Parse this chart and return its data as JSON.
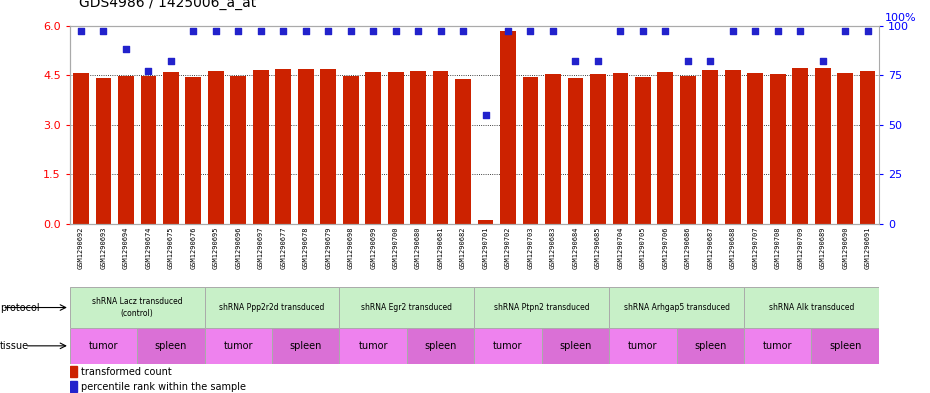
{
  "title": "GDS4986 / 1425006_a_at",
  "sample_ids": [
    "GSM1290692",
    "GSM1290693",
    "GSM1290694",
    "GSM1290674",
    "GSM1290675",
    "GSM1290676",
    "GSM1290695",
    "GSM1290696",
    "GSM1290697",
    "GSM1290677",
    "GSM1290678",
    "GSM1290679",
    "GSM1290698",
    "GSM1290699",
    "GSM1290700",
    "GSM1290680",
    "GSM1290681",
    "GSM1290682",
    "GSM1290701",
    "GSM1290702",
    "GSM1290703",
    "GSM1290683",
    "GSM1290684",
    "GSM1290685",
    "GSM1290704",
    "GSM1290705",
    "GSM1290706",
    "GSM1290686",
    "GSM1290687",
    "GSM1290688",
    "GSM1290707",
    "GSM1290708",
    "GSM1290709",
    "GSM1290689",
    "GSM1290690",
    "GSM1290691"
  ],
  "bar_values": [
    4.57,
    4.42,
    4.46,
    4.46,
    4.59,
    4.43,
    4.62,
    4.47,
    4.67,
    4.68,
    4.68,
    4.68,
    4.46,
    4.59,
    4.59,
    4.63,
    4.64,
    4.38,
    0.12,
    5.82,
    4.43,
    4.55,
    4.41,
    4.54,
    4.58,
    4.43,
    4.59,
    4.48,
    4.67,
    4.66,
    4.57,
    4.52,
    4.73,
    4.73,
    4.57,
    4.62
  ],
  "percentile_values": [
    97,
    97,
    88,
    77,
    82,
    97,
    97,
    97,
    97,
    97,
    97,
    97,
    97,
    97,
    97,
    97,
    97,
    97,
    55,
    97,
    97,
    97,
    82,
    82,
    97,
    97,
    97,
    82,
    82,
    97,
    97,
    97,
    97,
    82,
    97,
    97
  ],
  "protocols": [
    {
      "label": "shRNA Lacz transduced\n(control)",
      "start": 0,
      "end": 6,
      "color": "#c8f0c8"
    },
    {
      "label": "shRNA Ppp2r2d transduced",
      "start": 6,
      "end": 12,
      "color": "#c8f0c8"
    },
    {
      "label": "shRNA Egr2 transduced",
      "start": 12,
      "end": 18,
      "color": "#c8f0c8"
    },
    {
      "label": "shRNA Ptpn2 transduced",
      "start": 18,
      "end": 24,
      "color": "#c8f0c8"
    },
    {
      "label": "shRNA Arhgap5 transduced",
      "start": 24,
      "end": 30,
      "color": "#c8f0c8"
    },
    {
      "label": "shRNA Alk transduced",
      "start": 30,
      "end": 36,
      "color": "#c8f0c8"
    }
  ],
  "tissues": [
    {
      "label": "tumor",
      "start": 0,
      "end": 3,
      "color": "#ee82ee"
    },
    {
      "label": "spleen",
      "start": 3,
      "end": 6,
      "color": "#da70d6"
    },
    {
      "label": "tumor",
      "start": 6,
      "end": 9,
      "color": "#ee82ee"
    },
    {
      "label": "spleen",
      "start": 9,
      "end": 12,
      "color": "#da70d6"
    },
    {
      "label": "tumor",
      "start": 12,
      "end": 15,
      "color": "#ee82ee"
    },
    {
      "label": "spleen",
      "start": 15,
      "end": 18,
      "color": "#da70d6"
    },
    {
      "label": "tumor",
      "start": 18,
      "end": 21,
      "color": "#ee82ee"
    },
    {
      "label": "spleen",
      "start": 21,
      "end": 24,
      "color": "#da70d6"
    },
    {
      "label": "tumor",
      "start": 24,
      "end": 27,
      "color": "#ee82ee"
    },
    {
      "label": "spleen",
      "start": 27,
      "end": 30,
      "color": "#da70d6"
    },
    {
      "label": "tumor",
      "start": 30,
      "end": 33,
      "color": "#ee82ee"
    },
    {
      "label": "spleen",
      "start": 33,
      "end": 36,
      "color": "#da70d6"
    }
  ],
  "bar_color": "#cc2200",
  "dot_color": "#2222cc",
  "ylim_left": [
    0,
    6
  ],
  "ylim_right": [
    0,
    100
  ],
  "yticks_left": [
    0,
    1.5,
    3.0,
    4.5,
    6.0
  ],
  "yticks_right": [
    0,
    25,
    50,
    75,
    100
  ],
  "bg_color": "#ffffff"
}
